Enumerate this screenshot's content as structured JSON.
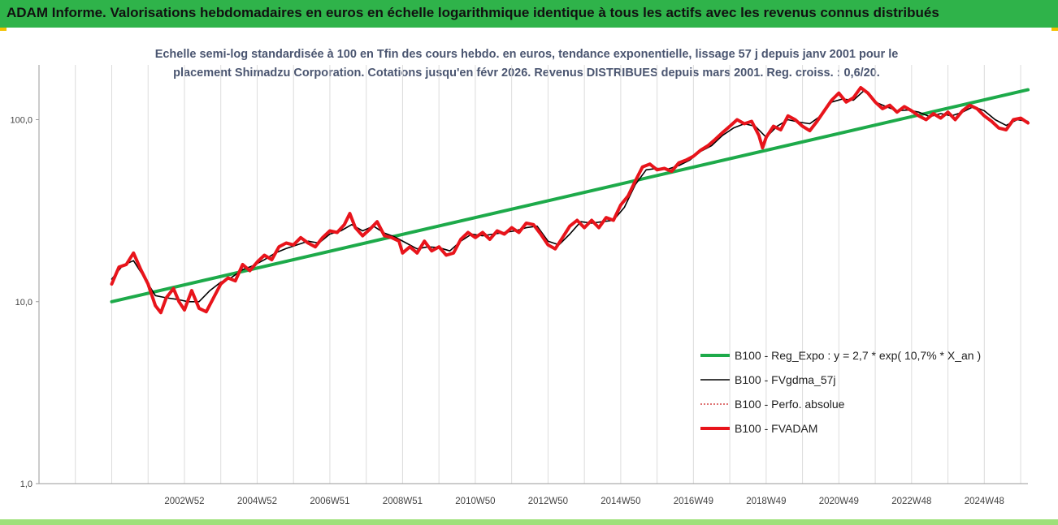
{
  "header": {
    "title": "ADAM Informe. Valorisations hebdomadaires en euros en échelle logarithmique identique à tous les actifs avec les revenus connus distribués"
  },
  "chart_data": {
    "type": "line",
    "title_line1": "Echelle semi-log standardisée à 100 en Tfin des cours hebdo. en euros, tendance exponentielle, lissage 57 j depuis janv 2001 pour le",
    "title_line2": "placement Shimadzu Corporation. Cotations jusqu'en févr 2026. Revenus DISTRIBUES depuis mars 2001. Reg. croiss. : 0,6/20.",
    "y_scale": "log",
    "ylim": [
      1,
      200
    ],
    "xlim": [
      1999.0,
      2026.2
    ],
    "y_ticks": [
      {
        "value": 1,
        "label": "1,0"
      },
      {
        "value": 10,
        "label": "10,0"
      },
      {
        "value": 100,
        "label": "100,0"
      }
    ],
    "x_ticks": [
      {
        "value": 2003.0,
        "label": "2002W52"
      },
      {
        "value": 2005.0,
        "label": "2004W52"
      },
      {
        "value": 2007.0,
        "label": "2006W51"
      },
      {
        "value": 2009.0,
        "label": "2008W51"
      },
      {
        "value": 2011.0,
        "label": "2010W50"
      },
      {
        "value": 2013.0,
        "label": "2012W50"
      },
      {
        "value": 2015.0,
        "label": "2014W50"
      },
      {
        "value": 2017.0,
        "label": "2016W49"
      },
      {
        "value": 2019.0,
        "label": "2018W49"
      },
      {
        "value": 2021.0,
        "label": "2020W49"
      },
      {
        "value": 2023.0,
        "label": "2022W48"
      },
      {
        "value": 2025.0,
        "label": "2024W48"
      }
    ],
    "grid": "vertical",
    "legend_position": "bottom-right",
    "series": [
      {
        "name": "B100 - Reg_Expo : y = 2,7 * exp( 10,7% *  X_an )",
        "color": "#1daa4a",
        "style": "solid-thick",
        "points": [
          [
            2001.0,
            10.0
          ],
          [
            2026.2,
            146
          ]
        ]
      },
      {
        "name": "B100 - FVgdma_57j",
        "color": "#000000",
        "style": "solid-thin",
        "points": [
          [
            2001.0,
            13.3
          ],
          [
            2001.3,
            15.8
          ],
          [
            2001.6,
            16.8
          ],
          [
            2001.9,
            13.5
          ],
          [
            2002.2,
            10.8
          ],
          [
            2002.5,
            10.5
          ],
          [
            2002.8,
            10.3
          ],
          [
            2003.1,
            10.0
          ],
          [
            2003.4,
            10.0
          ],
          [
            2003.7,
            11.5
          ],
          [
            2004.0,
            12.8
          ],
          [
            2004.3,
            13.6
          ],
          [
            2004.6,
            15.0
          ],
          [
            2004.9,
            15.8
          ],
          [
            2005.2,
            17.0
          ],
          [
            2005.5,
            18.5
          ],
          [
            2005.8,
            19.6
          ],
          [
            2006.1,
            20.5
          ],
          [
            2006.4,
            21.5
          ],
          [
            2006.7,
            21.0
          ],
          [
            2007.0,
            23.5
          ],
          [
            2007.3,
            24.5
          ],
          [
            2007.6,
            26.5
          ],
          [
            2007.9,
            24.5
          ],
          [
            2008.2,
            26.0
          ],
          [
            2008.5,
            23.8
          ],
          [
            2008.8,
            22.6
          ],
          [
            2009.1,
            21.0
          ],
          [
            2009.4,
            19.5
          ],
          [
            2009.7,
            20.0
          ],
          [
            2010.0,
            19.8
          ],
          [
            2010.3,
            19.0
          ],
          [
            2010.6,
            21.5
          ],
          [
            2010.9,
            23.5
          ],
          [
            2011.2,
            23.0
          ],
          [
            2011.5,
            23.5
          ],
          [
            2011.8,
            24.0
          ],
          [
            2012.1,
            24.5
          ],
          [
            2012.4,
            25.5
          ],
          [
            2012.7,
            26.0
          ],
          [
            2013.0,
            21.5
          ],
          [
            2013.3,
            20.5
          ],
          [
            2013.6,
            23.5
          ],
          [
            2013.9,
            27.5
          ],
          [
            2014.2,
            27.0
          ],
          [
            2014.5,
            27.5
          ],
          [
            2014.8,
            28.0
          ],
          [
            2015.1,
            33.0
          ],
          [
            2015.4,
            44.0
          ],
          [
            2015.7,
            53.0
          ],
          [
            2016.0,
            54.0
          ],
          [
            2016.3,
            53.5
          ],
          [
            2016.6,
            56.0
          ],
          [
            2016.9,
            60.0
          ],
          [
            2017.2,
            67.0
          ],
          [
            2017.5,
            72.0
          ],
          [
            2017.8,
            82.0
          ],
          [
            2018.1,
            90.0
          ],
          [
            2018.4,
            95.0
          ],
          [
            2018.7,
            92.0
          ],
          [
            2019.0,
            80.0
          ],
          [
            2019.3,
            92.0
          ],
          [
            2019.6,
            100.0
          ],
          [
            2019.9,
            97.0
          ],
          [
            2020.2,
            95.0
          ],
          [
            2020.5,
            105.0
          ],
          [
            2020.8,
            125.0
          ],
          [
            2021.1,
            130.0
          ],
          [
            2021.4,
            128.0
          ],
          [
            2021.7,
            145.0
          ],
          [
            2022.0,
            125.0
          ],
          [
            2022.3,
            118.0
          ],
          [
            2022.6,
            112.0
          ],
          [
            2022.9,
            113.0
          ],
          [
            2023.2,
            110.0
          ],
          [
            2023.5,
            104.0
          ],
          [
            2023.8,
            108.0
          ],
          [
            2024.1,
            105.0
          ],
          [
            2024.4,
            110.0
          ],
          [
            2024.7,
            118.0
          ],
          [
            2025.0,
            112.0
          ],
          [
            2025.3,
            100.0
          ],
          [
            2025.6,
            93.0
          ],
          [
            2025.9,
            100.0
          ],
          [
            2026.2,
            98.0
          ]
        ]
      },
      {
        "name": "B100 - Perfo. absolue",
        "color": "#cc2222",
        "style": "dotted",
        "points": []
      },
      {
        "name": "B100 - FVADAM",
        "color": "#e8141b",
        "style": "solid-thick",
        "points": [
          [
            2001.0,
            12.5
          ],
          [
            2001.2,
            15.5
          ],
          [
            2001.4,
            16.0
          ],
          [
            2001.6,
            18.5
          ],
          [
            2001.8,
            15.0
          ],
          [
            2002.0,
            12.5
          ],
          [
            2002.2,
            9.5
          ],
          [
            2002.35,
            8.7
          ],
          [
            2002.5,
            10.5
          ],
          [
            2002.7,
            11.8
          ],
          [
            2002.85,
            10.0
          ],
          [
            2003.0,
            9.0
          ],
          [
            2003.2,
            11.5
          ],
          [
            2003.4,
            9.2
          ],
          [
            2003.6,
            8.8
          ],
          [
            2003.8,
            10.5
          ],
          [
            2004.0,
            12.5
          ],
          [
            2004.2,
            13.5
          ],
          [
            2004.4,
            13.0
          ],
          [
            2004.6,
            16.0
          ],
          [
            2004.8,
            14.8
          ],
          [
            2005.0,
            16.5
          ],
          [
            2005.2,
            18.0
          ],
          [
            2005.4,
            17.0
          ],
          [
            2005.6,
            20.0
          ],
          [
            2005.8,
            21.0
          ],
          [
            2006.0,
            20.5
          ],
          [
            2006.2,
            22.5
          ],
          [
            2006.4,
            21.0
          ],
          [
            2006.6,
            20.0
          ],
          [
            2006.8,
            22.5
          ],
          [
            2007.0,
            24.5
          ],
          [
            2007.2,
            24.0
          ],
          [
            2007.4,
            26.5
          ],
          [
            2007.55,
            30.5
          ],
          [
            2007.7,
            25.5
          ],
          [
            2007.9,
            23.0
          ],
          [
            2008.1,
            25.0
          ],
          [
            2008.3,
            27.5
          ],
          [
            2008.5,
            23.0
          ],
          [
            2008.7,
            22.5
          ],
          [
            2008.9,
            21.5
          ],
          [
            2009.0,
            18.5
          ],
          [
            2009.2,
            20.0
          ],
          [
            2009.4,
            18.5
          ],
          [
            2009.6,
            21.5
          ],
          [
            2009.8,
            19.0
          ],
          [
            2010.0,
            20.0
          ],
          [
            2010.2,
            18.0
          ],
          [
            2010.4,
            18.5
          ],
          [
            2010.6,
            22.0
          ],
          [
            2010.8,
            24.0
          ],
          [
            2011.0,
            22.5
          ],
          [
            2011.2,
            24.0
          ],
          [
            2011.4,
            22.0
          ],
          [
            2011.6,
            24.5
          ],
          [
            2011.8,
            23.5
          ],
          [
            2012.0,
            25.5
          ],
          [
            2012.2,
            24.0
          ],
          [
            2012.4,
            27.0
          ],
          [
            2012.6,
            26.5
          ],
          [
            2012.8,
            23.5
          ],
          [
            2013.0,
            20.5
          ],
          [
            2013.2,
            19.5
          ],
          [
            2013.4,
            22.5
          ],
          [
            2013.6,
            26.0
          ],
          [
            2013.8,
            28.0
          ],
          [
            2014.0,
            25.5
          ],
          [
            2014.2,
            28.0
          ],
          [
            2014.4,
            25.5
          ],
          [
            2014.6,
            29.0
          ],
          [
            2014.8,
            28.0
          ],
          [
            2015.0,
            34.0
          ],
          [
            2015.2,
            38.0
          ],
          [
            2015.4,
            46.0
          ],
          [
            2015.6,
            55.0
          ],
          [
            2015.8,
            57.0
          ],
          [
            2016.0,
            53.0
          ],
          [
            2016.2,
            54.0
          ],
          [
            2016.4,
            52.0
          ],
          [
            2016.6,
            58.0
          ],
          [
            2016.8,
            60.0
          ],
          [
            2017.0,
            63.0
          ],
          [
            2017.2,
            68.0
          ],
          [
            2017.4,
            72.0
          ],
          [
            2017.6,
            78.0
          ],
          [
            2017.8,
            85.0
          ],
          [
            2018.0,
            92.0
          ],
          [
            2018.2,
            100.0
          ],
          [
            2018.4,
            95.0
          ],
          [
            2018.6,
            98.0
          ],
          [
            2018.8,
            82.0
          ],
          [
            2018.9,
            70.0
          ],
          [
            2019.0,
            80.0
          ],
          [
            2019.2,
            92.0
          ],
          [
            2019.4,
            88.0
          ],
          [
            2019.6,
            105.0
          ],
          [
            2019.8,
            100.0
          ],
          [
            2020.0,
            92.0
          ],
          [
            2020.2,
            87.0
          ],
          [
            2020.4,
            98.0
          ],
          [
            2020.6,
            112.0
          ],
          [
            2020.8,
            128.0
          ],
          [
            2021.0,
            140.0
          ],
          [
            2021.2,
            125.0
          ],
          [
            2021.4,
            132.0
          ],
          [
            2021.6,
            150.0
          ],
          [
            2021.8,
            140.0
          ],
          [
            2022.0,
            125.0
          ],
          [
            2022.2,
            115.0
          ],
          [
            2022.4,
            120.0
          ],
          [
            2022.6,
            110.0
          ],
          [
            2022.8,
            118.0
          ],
          [
            2023.0,
            112.0
          ],
          [
            2023.2,
            105.0
          ],
          [
            2023.4,
            100.0
          ],
          [
            2023.6,
            108.0
          ],
          [
            2023.8,
            102.0
          ],
          [
            2024.0,
            110.0
          ],
          [
            2024.2,
            100.0
          ],
          [
            2024.4,
            112.0
          ],
          [
            2024.6,
            120.0
          ],
          [
            2024.8,
            115.0
          ],
          [
            2025.0,
            105.0
          ],
          [
            2025.2,
            98.0
          ],
          [
            2025.4,
            90.0
          ],
          [
            2025.6,
            88.0
          ],
          [
            2025.8,
            100.0
          ],
          [
            2026.0,
            102.0
          ],
          [
            2026.2,
            96.0
          ]
        ]
      }
    ]
  }
}
